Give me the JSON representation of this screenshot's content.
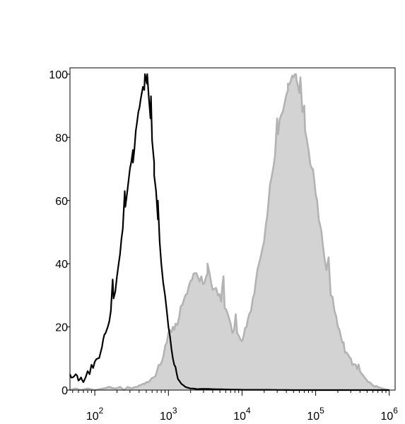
{
  "chart_data": {
    "type": "area",
    "title": "",
    "xlabel": "",
    "ylabel": "",
    "x_scale": "log",
    "xlim": [
      46,
      1200000
    ],
    "ylim": [
      0,
      102
    ],
    "x_tick_labels": [
      {
        "base": "10",
        "exp": "2",
        "value": 100
      },
      {
        "base": "10",
        "exp": "3",
        "value": 1000
      },
      {
        "base": "10",
        "exp": "4",
        "value": 10000
      },
      {
        "base": "10",
        "exp": "5",
        "value": 100000
      },
      {
        "base": "10",
        "exp": "6",
        "value": 1000000
      }
    ],
    "y_ticks": [
      0,
      20,
      40,
      60,
      80,
      100
    ],
    "grid": false,
    "series": [
      {
        "style": "filled",
        "color": "#b3b3b3",
        "fill": "#d3d3d3",
        "x": [
          46,
          55,
          65,
          80,
          100,
          130,
          160,
          190,
          220,
          250,
          280,
          320,
          360,
          400,
          450,
          500,
          560,
          630,
          700,
          780,
          860,
          950,
          1050,
          1150,
          1250,
          1400,
          1550,
          1700,
          1900,
          2100,
          2300,
          2500,
          2800,
          3100,
          3400,
          3800,
          4200,
          4700,
          5200,
          5800,
          6400,
          7000,
          7800,
          8600,
          9500,
          10500,
          11500,
          12500,
          14000,
          15500,
          17000,
          19000,
          21000,
          23000,
          25000,
          28000,
          31000,
          34000,
          38000,
          42000,
          46000,
          50000,
          55000,
          60000,
          66000,
          72000,
          80000,
          90000,
          100000,
          110000,
          125000,
          140000,
          160000,
          180000,
          200000,
          230000,
          260000,
          300000,
          350000,
          400000,
          460000,
          530000,
          600000,
          700000,
          800000,
          900000,
          1000000
        ],
        "values": [
          0,
          0.5,
          0,
          0.5,
          0,
          0.5,
          1,
          0.5,
          1,
          0,
          1,
          0.5,
          1,
          1.5,
          2,
          2.5,
          3,
          4,
          6,
          8,
          11,
          15,
          19,
          20,
          21,
          23,
          27,
          30,
          33,
          35,
          37,
          36,
          36,
          34,
          37,
          34,
          32,
          30,
          28,
          26,
          24,
          21,
          19,
          18,
          16,
          17,
          20,
          24,
          29,
          35,
          40,
          45,
          52,
          60,
          67,
          74,
          81,
          87,
          91,
          95,
          98,
          99,
          98,
          94,
          88,
          82,
          76,
          70,
          62,
          54,
          46,
          38,
          30,
          25,
          20,
          15,
          12,
          10,
          8,
          6,
          4,
          2.5,
          1.5,
          1,
          0.5,
          0.2,
          0
        ],
        "spikes": [
          [
            3400,
            40
          ],
          [
            5600,
            36
          ],
          [
            8200,
            24
          ],
          [
            30000,
            86
          ],
          [
            42000,
            97
          ],
          [
            54000,
            100
          ],
          [
            62000,
            99
          ],
          [
            70000,
            90
          ],
          [
            92000,
            70
          ],
          [
            150000,
            42
          ]
        ]
      },
      {
        "style": "line",
        "color": "#000000",
        "x": [
          46,
          50,
          55,
          60,
          65,
          70,
          75,
          80,
          85,
          90,
          95,
          100,
          110,
          120,
          130,
          140,
          150,
          165,
          180,
          200,
          220,
          240,
          260,
          280,
          300,
          330,
          360,
          390,
          420,
          450,
          480,
          510,
          540,
          570,
          600,
          640,
          680,
          720,
          760,
          800,
          850,
          900,
          950,
          1000,
          1050,
          1100,
          1150,
          1200,
          1300,
          1400,
          1500,
          1600,
          1700,
          1800,
          2000,
          2200,
          2500,
          3000,
          4000,
          6000,
          10000,
          20000,
          50000,
          100000,
          1000000
        ],
        "values": [
          5,
          4,
          5,
          3,
          4,
          2.5,
          4,
          6,
          5,
          8,
          7,
          9,
          10,
          12,
          16,
          18,
          20,
          25,
          29,
          36,
          43,
          51,
          58,
          64,
          70,
          76,
          82,
          88,
          92,
          96,
          100,
          97,
          93,
          86,
          79,
          72,
          63,
          54,
          47,
          40,
          34,
          30,
          25,
          20,
          17,
          13,
          10,
          8,
          5,
          3,
          2,
          1.5,
          1,
          0.8,
          0.5,
          0.5,
          0.3,
          0.4,
          0.3,
          0.2,
          0.1,
          0.1,
          0,
          0,
          0
        ],
        "spikes": [
          [
            175,
            35
          ],
          [
            255,
            63
          ],
          [
            330,
            72
          ],
          [
            470,
            95
          ],
          [
            515,
            100
          ],
          [
            580,
            93
          ],
          [
            640,
            68
          ],
          [
            720,
            60
          ]
        ]
      }
    ]
  }
}
